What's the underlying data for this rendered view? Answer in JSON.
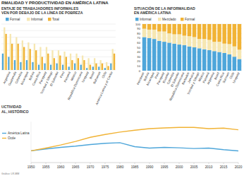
{
  "header": {
    "title": "RMALIDAD Y PRODUCTIVIDAD EN AMÉRICA LATINA"
  },
  "footer": {
    "source": "Gráfico: LR-MM"
  },
  "chart_data": [
    {
      "type": "bar",
      "title": "ENTAJE DE TRABAJADORES INFORMALES",
      "subtitle": "VEN POR DEBAJO DE LA LÍNEA DE POBREZA",
      "categories": [
        null,
        "Argentina",
        "Guatemala",
        "Colombia",
        "Nicaragua",
        "Bolivia",
        "Costa Rica",
        "Paraguay",
        "Trinidad y Tobago",
        "El Salvador",
        "Perú",
        "Panamá",
        "México",
        "República Dominicana",
        "Uruguay",
        "Brasil",
        "Bahamas",
        "Chile",
        "América Latina y el Caribe"
      ],
      "series": [
        {
          "name": "Formal",
          "color": "#4ea6da",
          "values": [
            25,
            20,
            15,
            12,
            15,
            12,
            8,
            10,
            8,
            10,
            8,
            5,
            10,
            8,
            3,
            5,
            5,
            3,
            10
          ]
        },
        {
          "name": "Informal",
          "color": "#f6e7b2",
          "values": [
            65,
            55,
            50,
            45,
            42,
            40,
            35,
            35,
            30,
            30,
            28,
            25,
            25,
            22,
            18,
            18,
            15,
            12,
            32
          ]
        },
        {
          "name": "Total",
          "color": "#f1b335",
          "values": [
            55,
            40,
            40,
            35,
            32,
            30,
            20,
            25,
            18,
            22,
            20,
            15,
            18,
            15,
            8,
            10,
            10,
            6,
            25
          ]
        }
      ],
      "ylim": [
        0,
        70
      ],
      "yticks": [
        0,
        10,
        20,
        30,
        40,
        50,
        60,
        70
      ],
      "grid": true,
      "tick_labels": "x",
      "legend": "top-left"
    },
    {
      "type": "bar",
      "stacked": true,
      "title": "SITUACIÓN DE LA INFORMALIDAD",
      "subtitle": "EN AMÉRICA LATINA",
      "categories": [
        "Honduras",
        "Bolivia",
        "Nicaragua",
        "Perú",
        "Paraguay",
        "Ecuador",
        "Colombia",
        "El Salvador",
        "República Dominicana",
        "Barbados",
        "Jamaica",
        "Trinidad y Tobago",
        "México",
        "Panamá",
        "Argentina",
        "Brasil",
        "Costa Rica",
        "Surinam",
        "Chile",
        "Uruguay"
      ],
      "series": [
        {
          "name": "Informal",
          "color": "#4ea6da",
          "values": [
            72,
            70,
            68,
            64,
            62,
            60,
            58,
            56,
            55,
            52,
            50,
            48,
            46,
            44,
            42,
            40,
            38,
            35,
            30,
            25
          ]
        },
        {
          "name": "Mezclado",
          "color": "#f6e7b2",
          "values": [
            18,
            18,
            20,
            20,
            22,
            20,
            20,
            22,
            20,
            22,
            22,
            20,
            22,
            22,
            20,
            22,
            20,
            22,
            22,
            20
          ]
        },
        {
          "name": "Formal",
          "color": "#f1b335",
          "values": [
            10,
            12,
            12,
            16,
            16,
            20,
            22,
            22,
            25,
            26,
            28,
            32,
            32,
            34,
            38,
            38,
            42,
            43,
            48,
            55
          ]
        }
      ],
      "ylim": [
        0,
        100
      ],
      "yticks": [
        0,
        10,
        20,
        30,
        40,
        50,
        60,
        70,
        80,
        90,
        100
      ],
      "grid": true,
      "legend": "top-left"
    },
    {
      "type": "line",
      "title": "UCTIVIDAD",
      "subtitle": "AL, HISTÓRICO",
      "x": [
        1950,
        1955,
        1960,
        1965,
        1970,
        1975,
        1980,
        1985,
        1990,
        1995,
        2000,
        2005,
        2010,
        2015,
        2020
      ],
      "series": [
        {
          "name": "América Latina",
          "color": "#4ea6da",
          "values": [
            100,
            108,
            115,
            120,
            127,
            132,
            135,
            118,
            112,
            115,
            113,
            110,
            112,
            105,
            100
          ]
        },
        {
          "name": "Ocde",
          "color": "#f1b335",
          "values": [
            100,
            112,
            125,
            140,
            158,
            170,
            180,
            188,
            195,
            198,
            200,
            200,
            195,
            197,
            190
          ]
        }
      ],
      "xlim": [
        1950,
        2020
      ],
      "xticks": [
        1950,
        1955,
        1960,
        1965,
        1970,
        1975,
        1980,
        1985,
        1990,
        1995,
        2000,
        2005,
        2010,
        2015,
        2020
      ],
      "ylim": [
        50,
        225
      ],
      "tick_labels": "x",
      "legend": "left"
    }
  ]
}
